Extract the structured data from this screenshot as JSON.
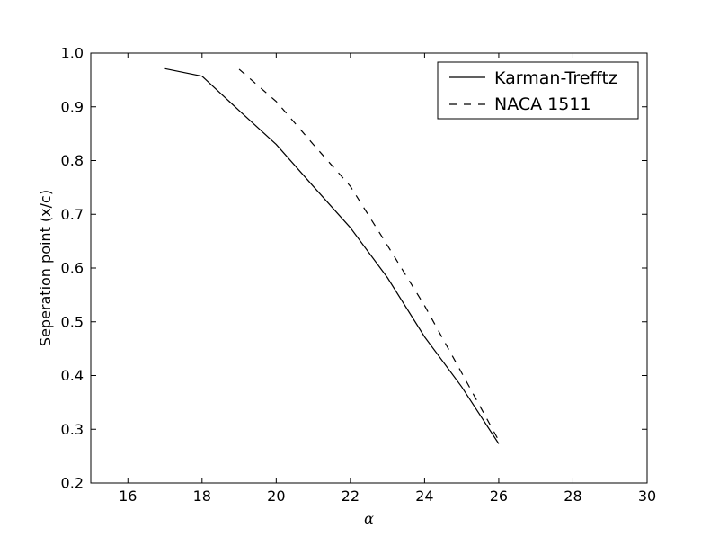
{
  "chart_data": {
    "type": "line",
    "title": "",
    "xlabel": "α",
    "ylabel": "Seperation point (x/c)",
    "xlim": [
      15,
      30
    ],
    "ylim": [
      0.2,
      1.0
    ],
    "xticks": [
      "16",
      "18",
      "20",
      "22",
      "24",
      "26",
      "28",
      "30"
    ],
    "yticks": [
      "0.2",
      "0.3",
      "0.4",
      "0.5",
      "0.6",
      "0.7",
      "0.8",
      "0.9",
      "1.0"
    ],
    "grid": false,
    "legend_position": "top-right",
    "series": [
      {
        "name": "Karman-Trefftz",
        "style": "solid",
        "color": "#000000",
        "x": [
          17,
          18,
          19,
          20,
          21,
          22,
          23,
          24,
          25,
          26
        ],
        "y": [
          0.971,
          0.957,
          0.893,
          0.83,
          0.752,
          0.675,
          0.582,
          0.472,
          0.379,
          0.273
        ]
      },
      {
        "name": "NACA 1511",
        "style": "dashed",
        "color": "#000000",
        "x": [
          19,
          20,
          21,
          22,
          23,
          24,
          25,
          26
        ],
        "y": [
          0.97,
          0.91,
          0.83,
          0.752,
          0.642,
          0.53,
          0.405,
          0.279
        ]
      }
    ]
  }
}
